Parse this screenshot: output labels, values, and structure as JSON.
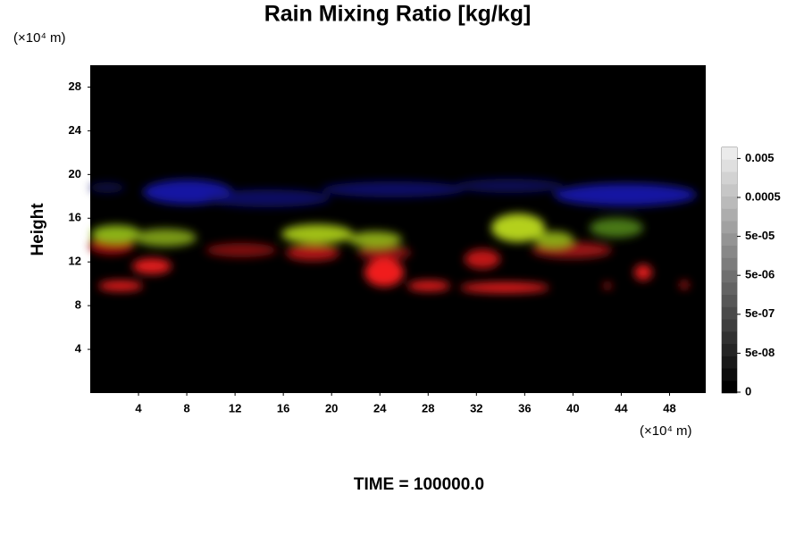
{
  "chart_data": {
    "type": "image",
    "title": "Rain Mixing Ratio [kg/kg]",
    "y_unit": "(×10⁴ m)",
    "x_unit": "(×10⁴ m)",
    "y_label": "Height",
    "footer": "TIME = 100000.0",
    "xlim": [
      0,
      51
    ],
    "xticks": [
      4,
      8,
      12,
      16,
      20,
      24,
      28,
      32,
      36,
      40,
      44,
      48
    ],
    "ylim": [
      0,
      30
    ],
    "yticks": [
      4,
      8,
      12,
      16,
      20,
      24,
      28
    ],
    "colorbar_ticks": [
      0,
      {
        "value": 5e-08,
        "label": "5e-08"
      },
      {
        "value": 5e-07,
        "label": "5e-07"
      },
      {
        "value": 5e-06,
        "label": "5e-06"
      },
      {
        "value": 5e-05,
        "label": "5e-05"
      },
      0.0005,
      0.005
    ]
  }
}
